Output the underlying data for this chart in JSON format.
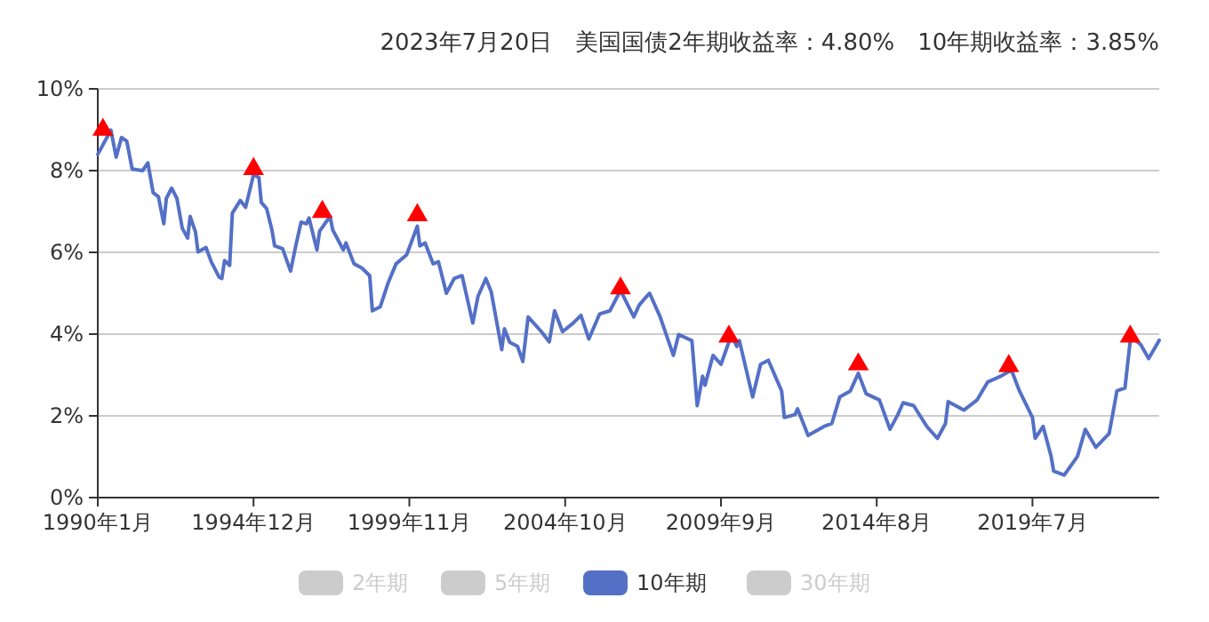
{
  "chart_data": {
    "type": "line",
    "title": "2023年7月20日　美国国债2年期收益率：4.80%　10年期收益率：3.85%",
    "xlim": [
      "1990-01",
      "2023-07"
    ],
    "xticks": [
      {
        "value": "1990-01",
        "label": "1990年1月"
      },
      {
        "value": "1994-12",
        "label": "1994年12月"
      },
      {
        "value": "1999-11",
        "label": "1999年11月"
      },
      {
        "value": "2004-10",
        "label": "2004年10月"
      },
      {
        "value": "2009-09",
        "label": "2009年9月"
      },
      {
        "value": "2014-08",
        "label": "2014年8月"
      },
      {
        "value": "2019-07",
        "label": "2019年7月"
      }
    ],
    "ylim": [
      0,
      10
    ],
    "yticks": [
      {
        "value": 0,
        "label": "0%"
      },
      {
        "value": 2,
        "label": "2%"
      },
      {
        "value": 4,
        "label": "4%"
      },
      {
        "value": 6,
        "label": "6%"
      },
      {
        "value": 8,
        "label": "8%"
      },
      {
        "value": 10,
        "label": "10%"
      }
    ],
    "grid": "y",
    "legend": "bottom",
    "line_style": "solid",
    "marker": "none",
    "x": [
      "1990-01",
      "1990-06",
      "1990-08",
      "1990-10",
      "1990-12",
      "1991-02",
      "1991-06",
      "1991-08",
      "1991-10",
      "1991-12",
      "1992-02",
      "1992-03",
      "1992-05",
      "1992-07",
      "1992-09",
      "1992-11",
      "1992-12",
      "1993-02",
      "1993-03",
      "1993-06",
      "1993-08",
      "1993-11",
      "1993-12",
      "1994-01",
      "1994-03",
      "1994-04",
      "1994-07",
      "1994-09",
      "1994-12",
      "1995-02",
      "1995-03",
      "1995-05",
      "1995-07",
      "1995-08",
      "1995-11",
      "1996-02",
      "1996-04",
      "1996-06",
      "1996-08",
      "1996-09",
      "1996-12",
      "1997-01",
      "1997-05",
      "1997-06",
      "1997-10",
      "1997-11",
      "1998-02",
      "1998-05",
      "1998-08",
      "1998-09",
      "1998-12",
      "1999-03",
      "1999-06",
      "1999-10",
      "2000-02",
      "2000-03",
      "2000-05",
      "2000-08",
      "2000-10",
      "2001-01",
      "2001-04",
      "2001-07",
      "2001-11",
      "2002-01",
      "2002-04",
      "2002-06",
      "2002-10",
      "2002-11",
      "2003-01",
      "2003-04",
      "2003-06",
      "2003-08",
      "2004-01",
      "2004-04",
      "2004-06",
      "2004-09",
      "2005-01",
      "2005-04",
      "2005-07",
      "2005-11",
      "2006-03",
      "2006-07",
      "2006-12",
      "2007-02",
      "2007-05",
      "2007-06",
      "2007-10",
      "2008-03",
      "2008-05",
      "2008-10",
      "2008-12",
      "2009-02",
      "2009-03",
      "2009-06",
      "2009-09",
      "2010-01",
      "2010-03",
      "2010-04",
      "2010-09",
      "2010-12",
      "2011-03",
      "2011-08",
      "2011-09",
      "2012-01",
      "2012-02",
      "2012-06",
      "2012-12",
      "2013-03",
      "2013-06",
      "2013-10",
      "2014-01",
      "2014-04",
      "2014-09",
      "2015-01",
      "2015-04",
      "2015-06",
      "2015-10",
      "2016-03",
      "2016-07",
      "2016-10",
      "2016-11",
      "2017-05",
      "2017-10",
      "2018-02",
      "2018-07",
      "2018-11",
      "2019-02",
      "2019-07",
      "2019-08",
      "2019-11",
      "2020-02",
      "2020-03",
      "2020-07",
      "2020-12",
      "2021-03",
      "2021-07",
      "2021-12",
      "2022-03",
      "2022-06",
      "2022-08",
      "2022-09",
      "2022-12",
      "2023-03",
      "2023-07"
    ],
    "series": [
      {
        "name": "2年期",
        "color": "#cccccc",
        "values": [
          null,
          null,
          null,
          null,
          null,
          null,
          null,
          null,
          null,
          null,
          null,
          null,
          null,
          null,
          null,
          null,
          null,
          null,
          null,
          null,
          null,
          null,
          null,
          null,
          null,
          null,
          null,
          null,
          null,
          null,
          null,
          null,
          null,
          null,
          null,
          null,
          null,
          null,
          null,
          null,
          null,
          null,
          null,
          null,
          null,
          null,
          null,
          null,
          null,
          null,
          null,
          null,
          null,
          null,
          null,
          null,
          null,
          null,
          null,
          null,
          null,
          null,
          null,
          null,
          null,
          null,
          null,
          null,
          null,
          null,
          null,
          null,
          null,
          null,
          null,
          null,
          null,
          null,
          null,
          null,
          null,
          null,
          null,
          null,
          null,
          null,
          null,
          null,
          null,
          null,
          null,
          null,
          null,
          null,
          null,
          null,
          null,
          null,
          null,
          null,
          null,
          null,
          null,
          null,
          null,
          null,
          null,
          null,
          null,
          null,
          null,
          null,
          null,
          null,
          null,
          null,
          null,
          null,
          null,
          null,
          null,
          null,
          null,
          null,
          null,
          null,
          null,
          null,
          null,
          null,
          null,
          null,
          null,
          null,
          null,
          null,
          null,
          null,
          null,
          null,
          null,
          null,
          null,
          null
        ]
      },
      {
        "name": "5年期",
        "color": "#cccccc",
        "values": [
          null,
          null,
          null,
          null,
          null,
          null,
          null,
          null,
          null,
          null,
          null,
          null,
          null,
          null,
          null,
          null,
          null,
          null,
          null,
          null,
          null,
          null,
          null,
          null,
          null,
          null,
          null,
          null,
          null,
          null,
          null,
          null,
          null,
          null,
          null,
          null,
          null,
          null,
          null,
          null,
          null,
          null,
          null,
          null,
          null,
          null,
          null,
          null,
          null,
          null,
          null,
          null,
          null,
          null,
          null,
          null,
          null,
          null,
          null,
          null,
          null,
          null,
          null,
          null,
          null,
          null,
          null,
          null,
          null,
          null,
          null,
          null,
          null,
          null,
          null,
          null,
          null,
          null,
          null,
          null,
          null,
          null,
          null,
          null,
          null,
          null,
          null,
          null,
          null,
          null,
          null,
          null,
          null,
          null,
          null,
          null,
          null,
          null,
          null,
          null,
          null,
          null,
          null,
          null,
          null,
          null,
          null,
          null,
          null,
          null,
          null,
          null,
          null,
          null,
          null,
          null,
          null,
          null,
          null,
          null,
          null,
          null,
          null,
          null,
          null,
          null,
          null,
          null,
          null,
          null,
          null,
          null,
          null,
          null,
          null,
          null,
          null,
          null,
          null,
          null,
          null,
          null,
          null,
          null
        ]
      },
      {
        "name": "10年期",
        "color": "#5470c6",
        "values": [
          8.4,
          8.99,
          8.33,
          8.81,
          8.72,
          8.04,
          8.0,
          8.19,
          7.46,
          7.36,
          6.7,
          7.32,
          7.57,
          7.32,
          6.59,
          6.35,
          6.88,
          6.49,
          6.01,
          6.12,
          5.77,
          5.39,
          5.36,
          5.8,
          5.68,
          6.96,
          7.27,
          7.1,
          7.9,
          7.83,
          7.22,
          7.07,
          6.55,
          6.16,
          6.09,
          5.54,
          6.16,
          6.74,
          6.7,
          6.84,
          6.06,
          6.52,
          6.88,
          6.55,
          6.06,
          6.23,
          5.72,
          5.62,
          5.43,
          4.57,
          4.67,
          5.25,
          5.72,
          5.94,
          6.64,
          6.16,
          6.23,
          5.72,
          5.77,
          5.0,
          5.36,
          5.43,
          4.27,
          4.93,
          5.36,
          5.04,
          3.62,
          4.13,
          3.8,
          3.7,
          3.33,
          4.42,
          4.06,
          3.81,
          4.57,
          4.06,
          4.27,
          4.46,
          3.88,
          4.49,
          4.57,
          5.07,
          4.42,
          4.71,
          4.93,
          5.0,
          4.42,
          3.48,
          3.99,
          3.84,
          2.25,
          2.97,
          2.75,
          3.48,
          3.26,
          3.99,
          3.7,
          3.84,
          2.46,
          3.26,
          3.36,
          2.61,
          1.96,
          2.03,
          2.17,
          1.52,
          1.74,
          1.81,
          2.46,
          2.61,
          3.04,
          2.54,
          2.39,
          1.67,
          2.03,
          2.32,
          2.25,
          1.74,
          1.45,
          1.81,
          2.35,
          2.14,
          2.39,
          2.83,
          2.97,
          3.12,
          2.61,
          1.96,
          1.45,
          1.74,
          1.01,
          0.65,
          0.55,
          1.01,
          1.67,
          1.23,
          1.57,
          2.61,
          2.68,
          3.84,
          3.91,
          3.74,
          3.4,
          3.85
        ]
      },
      {
        "name": "30年期",
        "color": "#cccccc",
        "values": [
          null,
          null,
          null,
          null,
          null,
          null,
          null,
          null,
          null,
          null,
          null,
          null,
          null,
          null,
          null,
          null,
          null,
          null,
          null,
          null,
          null,
          null,
          null,
          null,
          null,
          null,
          null,
          null,
          null,
          null,
          null,
          null,
          null,
          null,
          null,
          null,
          null,
          null,
          null,
          null,
          null,
          null,
          null,
          null,
          null,
          null,
          null,
          null,
          null,
          null,
          null,
          null,
          null,
          null,
          null,
          null,
          null,
          null,
          null,
          null,
          null,
          null,
          null,
          null,
          null,
          null,
          null,
          null,
          null,
          null,
          null,
          null,
          null,
          null,
          null,
          null,
          null,
          null,
          null,
          null,
          null,
          null,
          null,
          null,
          null,
          null,
          null,
          null,
          null,
          null,
          null,
          null,
          null,
          null,
          null,
          null,
          null,
          null,
          null,
          null,
          null,
          null,
          null,
          null,
          null,
          null,
          null,
          null,
          null,
          null,
          null,
          null,
          null,
          null,
          null,
          null,
          null,
          null,
          null,
          null,
          null,
          null,
          null,
          null,
          null,
          null,
          null,
          null,
          null,
          null,
          null,
          null,
          null,
          null,
          null,
          null,
          null,
          null,
          null,
          null,
          null,
          null,
          null,
          null
        ]
      },
      {
        "type": "scatter",
        "color": "#ff0000",
        "marker": "triangle",
        "x": [
          "1990-03",
          "1994-12",
          "1997-02",
          "2000-02",
          "2006-07",
          "2009-12",
          "2014-01",
          "2018-10",
          "2022-08"
        ],
        "values": [
          9.0,
          8.04,
          6.99,
          6.91,
          5.12,
          3.94,
          3.26,
          3.22,
          3.94
        ]
      }
    ]
  }
}
